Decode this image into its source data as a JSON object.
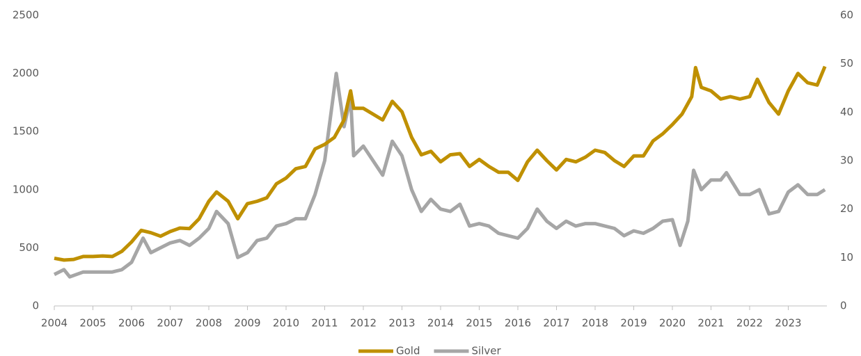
{
  "chart_data": {
    "type": "line",
    "xlim": [
      2004,
      2024
    ],
    "xticks": [
      2004,
      2005,
      2006,
      2007,
      2008,
      2009,
      2010,
      2011,
      2012,
      2013,
      2014,
      2015,
      2016,
      2017,
      2018,
      2019,
      2020,
      2021,
      2022,
      2023
    ],
    "ylim": [
      0,
      2500
    ],
    "yticks": [
      0,
      500,
      1000,
      1500,
      2000,
      2500
    ],
    "y2lim": [
      0,
      60
    ],
    "y2ticks": [
      0,
      10,
      20,
      30,
      40,
      50,
      60
    ],
    "legend": "bottom",
    "series": [
      {
        "name": "Gold",
        "color": "#bf9000",
        "x": [
          2004.0,
          2004.25,
          2004.5,
          2004.75,
          2005.0,
          2005.25,
          2005.5,
          2005.75,
          2006.0,
          2006.25,
          2006.5,
          2006.75,
          2007.0,
          2007.25,
          2007.5,
          2007.75,
          2008.0,
          2008.2,
          2008.5,
          2008.75,
          2009.0,
          2009.25,
          2009.5,
          2009.75,
          2010.0,
          2010.25,
          2010.5,
          2010.75,
          2011.0,
          2011.25,
          2011.5,
          2011.67,
          2011.75,
          2012.0,
          2012.25,
          2012.5,
          2012.75,
          2013.0,
          2013.25,
          2013.5,
          2013.75,
          2014.0,
          2014.25,
          2014.5,
          2014.75,
          2015.0,
          2015.25,
          2015.5,
          2015.75,
          2016.0,
          2016.25,
          2016.5,
          2016.75,
          2017.0,
          2017.25,
          2017.5,
          2017.75,
          2018.0,
          2018.25,
          2018.5,
          2018.75,
          2019.0,
          2019.25,
          2019.5,
          2019.75,
          2020.0,
          2020.25,
          2020.5,
          2020.6,
          2020.75,
          2021.0,
          2021.25,
          2021.5,
          2021.75,
          2022.0,
          2022.2,
          2022.5,
          2022.75,
          2023.0,
          2023.25,
          2023.5,
          2023.75,
          2023.95
        ],
        "values": [
          410,
          395,
          400,
          425,
          425,
          430,
          425,
          470,
          550,
          650,
          630,
          600,
          640,
          670,
          665,
          750,
          900,
          980,
          900,
          750,
          880,
          900,
          930,
          1050,
          1100,
          1180,
          1200,
          1350,
          1390,
          1450,
          1600,
          1850,
          1700,
          1700,
          1650,
          1600,
          1760,
          1670,
          1450,
          1300,
          1330,
          1240,
          1300,
          1310,
          1200,
          1260,
          1200,
          1150,
          1150,
          1080,
          1240,
          1340,
          1250,
          1170,
          1260,
          1240,
          1280,
          1340,
          1320,
          1250,
          1200,
          1290,
          1290,
          1420,
          1480,
          1560,
          1650,
          1800,
          2050,
          1880,
          1850,
          1780,
          1800,
          1780,
          1800,
          1950,
          1750,
          1650,
          1850,
          2000,
          1920,
          1900,
          2060
        ]
      },
      {
        "name": "Silver",
        "color": "#a6a6a6",
        "axis": "y2",
        "x": [
          2004.0,
          2004.25,
          2004.4,
          2004.75,
          2005.0,
          2005.25,
          2005.5,
          2005.75,
          2006.0,
          2006.3,
          2006.5,
          2006.75,
          2007.0,
          2007.25,
          2007.5,
          2007.75,
          2008.0,
          2008.2,
          2008.5,
          2008.75,
          2009.0,
          2009.25,
          2009.5,
          2009.75,
          2010.0,
          2010.25,
          2010.5,
          2010.75,
          2011.0,
          2011.3,
          2011.5,
          2011.67,
          2011.75,
          2012.0,
          2012.25,
          2012.5,
          2012.75,
          2013.0,
          2013.25,
          2013.5,
          2013.75,
          2014.0,
          2014.25,
          2014.5,
          2014.75,
          2015.0,
          2015.25,
          2015.5,
          2015.75,
          2016.0,
          2016.25,
          2016.5,
          2016.75,
          2017.0,
          2017.25,
          2017.5,
          2017.75,
          2018.0,
          2018.25,
          2018.5,
          2018.75,
          2019.0,
          2019.25,
          2019.5,
          2019.75,
          2020.0,
          2020.2,
          2020.4,
          2020.55,
          2020.75,
          2021.0,
          2021.25,
          2021.4,
          2021.75,
          2022.0,
          2022.25,
          2022.5,
          2022.75,
          2023.0,
          2023.25,
          2023.5,
          2023.75,
          2023.95
        ],
        "values": [
          6.5,
          7.5,
          6,
          7,
          7,
          7,
          7,
          7.5,
          9,
          14,
          11,
          12,
          13,
          13.5,
          12.5,
          14,
          16,
          19.5,
          17,
          10,
          11,
          13.5,
          14,
          16.5,
          17,
          18,
          18,
          23,
          30,
          48,
          37,
          43,
          31,
          33,
          30,
          27,
          34,
          31,
          24,
          19.5,
          22,
          20,
          19.5,
          21,
          16.5,
          17,
          16.5,
          15,
          14.5,
          14,
          16,
          20,
          17.5,
          16,
          17.5,
          16.5,
          17,
          17,
          16.5,
          16,
          14.5,
          15.5,
          15,
          16,
          17.5,
          17.8,
          12.5,
          17.5,
          28,
          24,
          26,
          26,
          27.5,
          23,
          23,
          24,
          19,
          19.5,
          23.5,
          25,
          23,
          23,
          24
        ]
      }
    ]
  }
}
